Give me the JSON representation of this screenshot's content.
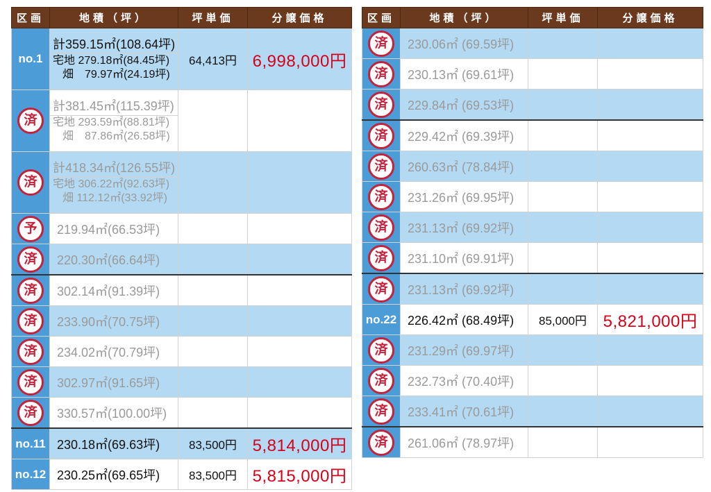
{
  "headers": {
    "lot": "区画",
    "area": "地積（坪）",
    "unit_price": "坪単価",
    "sale_price": "分譲価格"
  },
  "stamps": {
    "sold": "済",
    "reserved": "予"
  },
  "left_rows": [
    {
      "lot": "no.1",
      "total": "計359.15㎡(108.64坪)",
      "house": "宅地 279.18㎡(84.45坪)",
      "field": "畑　79.97㎡(24.19坪)",
      "unit": "64,413円",
      "price": "6,998,000円"
    },
    {
      "stamp": "済",
      "total": "計381.45㎡(115.39坪)",
      "house": "宅地 293.59㎡(88.81坪)",
      "field": "畑　87.86㎡(26.58坪)"
    },
    {
      "stamp": "済",
      "total": "計418.34㎡(126.55坪)",
      "house": "宅地 306.22㎡(92.63坪)",
      "field": "畑 112.12㎡(33.92坪)"
    },
    {
      "stamp": "予",
      "area": "219.94㎡(66.53坪)"
    },
    {
      "stamp": "済",
      "area": "220.30㎡(66.64坪)"
    },
    {
      "stamp": "済",
      "area": "302.14㎡(91.39坪)"
    },
    {
      "stamp": "済",
      "area": "233.90㎡(70.75坪)"
    },
    {
      "stamp": "済",
      "area": "234.02㎡(70.79坪)"
    },
    {
      "stamp": "済",
      "area": "302.97㎡(91.65坪)"
    },
    {
      "stamp": "済",
      "area": "330.57㎡(100.00坪)"
    },
    {
      "lot": "no.11",
      "area": "230.18㎡(69.63坪)",
      "unit": "83,500円",
      "price": "5,814,000円"
    },
    {
      "lot": "no.12",
      "area": "230.25㎡(69.65坪)",
      "unit": "83,500円",
      "price": "5,815,000円"
    }
  ],
  "right_rows": [
    {
      "stamp": "済",
      "area": "230.06㎡ (69.59坪)"
    },
    {
      "stamp": "済",
      "area": "230.13㎡ (69.61坪)"
    },
    {
      "stamp": "済",
      "area": "229.84㎡ (69.53坪)"
    },
    {
      "stamp": "済",
      "area": "229.42㎡ (69.39坪)"
    },
    {
      "stamp": "済",
      "area": "260.63㎡ (78.84坪)"
    },
    {
      "stamp": "済",
      "area": "231.26㎡ (69.95坪)"
    },
    {
      "stamp": "済",
      "area": "231.13㎡ (69.92坪)"
    },
    {
      "stamp": "済",
      "area": "231.10㎡ (69.91坪)"
    },
    {
      "stamp": "済",
      "area": "231.13㎡ (69.92坪)"
    },
    {
      "lot": "no.22",
      "area": "226.42㎡ (68.49坪)",
      "unit": "85,000円",
      "price": "5,821,000円"
    },
    {
      "stamp": "済",
      "area": "231.29㎡ (69.97坪)"
    },
    {
      "stamp": "済",
      "area": "232.73㎡ (70.40坪)"
    },
    {
      "stamp": "済",
      "area": "233.41㎡ (70.61坪)"
    },
    {
      "stamp": "済",
      "area": "261.06㎡ (78.97坪)"
    }
  ],
  "colors": {
    "header_bg": "#6b3a1e",
    "lot_cell_bg": "#4c9cd8",
    "row_blue": "#b3daf2",
    "stamp_red": "#c4213a",
    "price_red": "#d7001a"
  }
}
